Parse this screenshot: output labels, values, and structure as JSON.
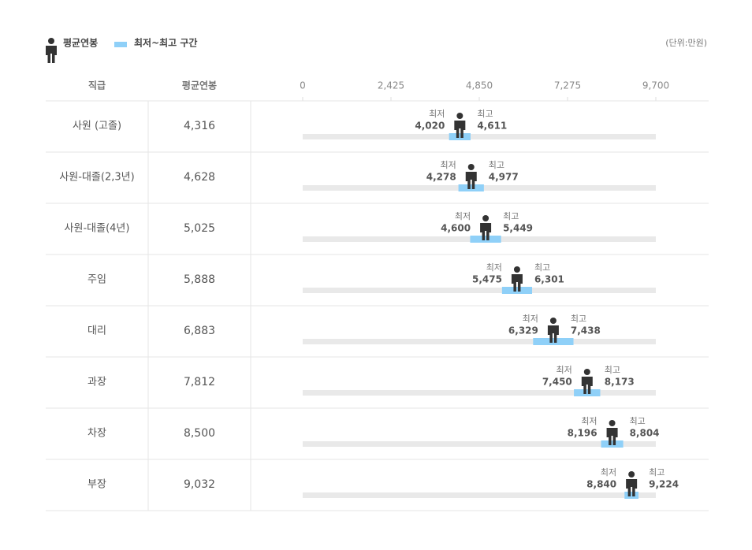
{
  "chart_data": {
    "type": "range",
    "legend_range": "최저~최고 구간",
    "unit": "(단위:만원)",
    "columns": [
      "직급",
      "평균연봉"
    ],
    "categories": [
      "사원 (고졸)",
      "사원-대졸(2,3년)",
      "사원-대졸(4년)",
      "주임",
      "대리",
      "과장",
      "차장",
      "부장"
    ],
    "xlim": [
      0,
      9700
    ],
    "xticks": [
      0,
      {
        "value": 2425,
        "label": "2,425"
      },
      {
        "value": 4850,
        "label": "4,850"
      },
      {
        "value": 7275,
        "label": "7,275"
      },
      {
        "value": 9700,
        "label": "9,700"
      }
    ],
    "series": [
      {
        "name": "평균연봉",
        "color": "#333333",
        "values": [
          4316,
          4628,
          5025,
          5888,
          6883,
          7812,
          8500,
          9032
        ],
        "value_labels": [
          "4,316",
          "4,628",
          "5,025",
          "5,888",
          "6,883",
          "7,812",
          "8,500",
          "9,032"
        ]
      },
      {
        "name": "최저",
        "color": "#8fd0f8",
        "values": [
          4020,
          4278,
          4600,
          5475,
          6329,
          7450,
          8196,
          8840
        ],
        "value_labels": [
          "4,020",
          "4,278",
          "4,600",
          "5,475",
          "6,329",
          "7,450",
          "8,196",
          "8,840"
        ]
      },
      {
        "name": "최고",
        "color": "#8fd0f8",
        "values": [
          4611,
          4977,
          5449,
          6301,
          7438,
          8173,
          8804,
          9224
        ],
        "value_labels": [
          "4,611",
          "4,977",
          "5,449",
          "6,301",
          "7,438",
          "8,173",
          "8,804",
          "9,224"
        ]
      }
    ]
  }
}
